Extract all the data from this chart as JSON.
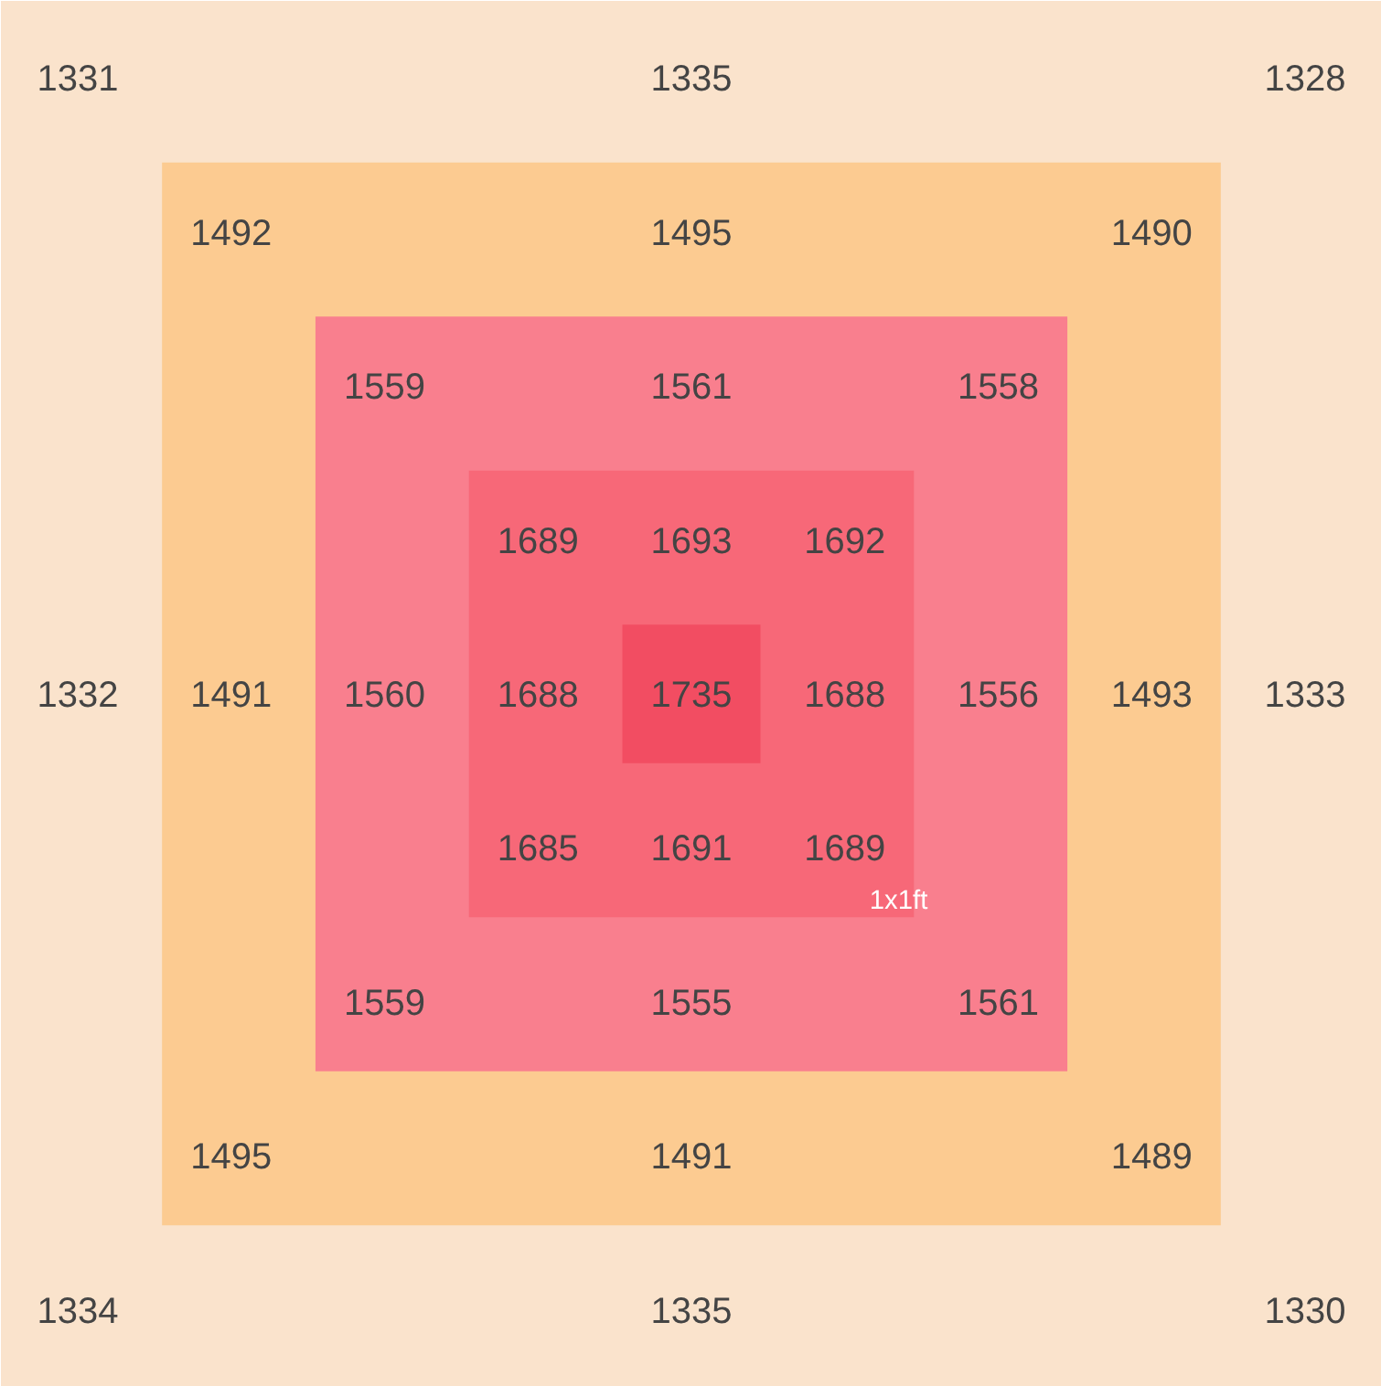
{
  "chart_data": {
    "type": "other",
    "data_labels": true,
    "values": [
      1331,
      1335,
      1328,
      1492,
      1495,
      1490,
      1559,
      1561,
      1558,
      1689,
      1693,
      1692,
      1332,
      1491,
      1560,
      1688,
      1735,
      1688,
      1556,
      1493,
      1333,
      1685,
      1691,
      1689,
      1559,
      1555,
      1561,
      1495,
      1491,
      1489,
      1334,
      1335,
      1330
    ],
    "colors": [
      "#fae3cc",
      "#fae3cc",
      "#fae3cc",
      "#fccb91",
      "#fccb91",
      "#fccb91",
      "#f97f8e",
      "#f97f8e",
      "#f97f8e",
      "#f76878",
      "#f76878",
      "#f76878",
      "#fae3cc",
      "#fccb91",
      "#f97f8e",
      "#f76878",
      "#f24d62",
      "#f76878",
      "#f97f8e",
      "#fccb91",
      "#fae3cc",
      "#f76878",
      "#f76878",
      "#f76878",
      "#f97f8e",
      "#f97f8e",
      "#f97f8e",
      "#fccb91",
      "#fccb91",
      "#fccb91",
      "#fae3cc",
      "#fae3cc",
      "#fae3cc"
    ],
    "annotations": [
      "1x1ft"
    ]
  }
}
